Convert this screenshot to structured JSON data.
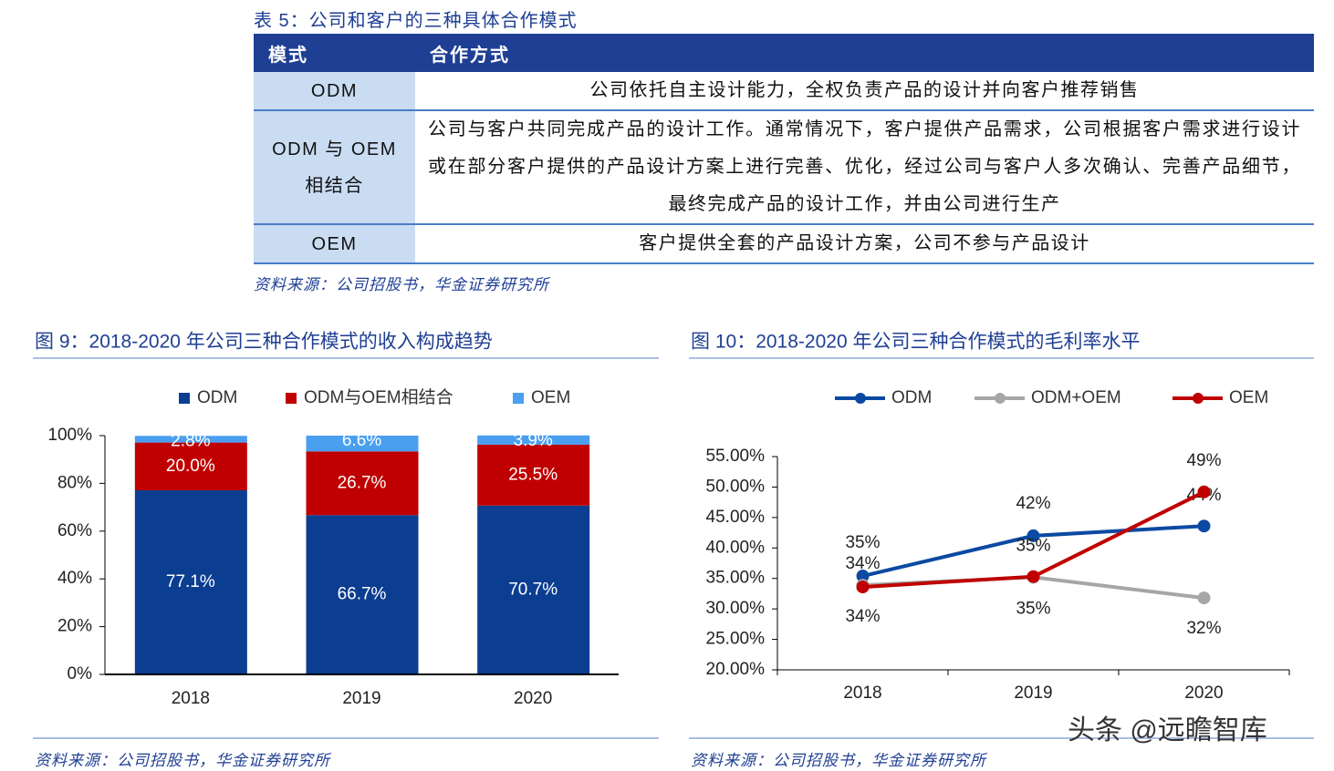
{
  "table": {
    "caption": "表 5：公司和客户的三种具体合作模式",
    "header": [
      "模式",
      "合作方式"
    ],
    "rows": [
      [
        "ODM",
        "公司依托自主设计能力，全权负责产品的设计并向客户推荐销售"
      ],
      [
        "ODM 与 OEM 相结合",
        "公司与客户共同完成产品的设计工作。通常情况下，客户提供产品需求，公司根据客户需求进行设计或在部分客户提供的产品设计方案上进行完善、优化，经过公司与客户人多次确认、完善产品细节，最终完成产品的设计工作，并由公司进行生产"
      ],
      [
        "OEM",
        "客户提供全套的产品设计方案，公司不参与产品设计"
      ]
    ],
    "source": "资料来源：公司招股书，华金证券研究所"
  },
  "chart_data": [
    {
      "type": "stacked-bar",
      "title": "图 9：2018-2020 年公司三种合作模式的收入构成趋势",
      "categories": [
        "2018",
        "2019",
        "2020"
      ],
      "series": [
        {
          "name": "ODM",
          "color": "#0b3d91",
          "values": [
            77.1,
            66.7,
            70.7
          ],
          "value_labels": [
            "77.1%",
            "66.7%",
            "70.7%"
          ]
        },
        {
          "name": "ODM与OEM相结合",
          "color": "#c00000",
          "values": [
            20.0,
            26.7,
            25.5
          ],
          "value_labels": [
            "20.0%",
            "26.7%",
            "25.5%"
          ]
        },
        {
          "name": "OEM",
          "color": "#4a9ff0",
          "values": [
            2.8,
            6.6,
            3.9
          ],
          "value_labels": [
            "2.8%",
            "6.6%",
            "3.9%"
          ]
        }
      ],
      "ylim": [
        0,
        100
      ],
      "yticks": [
        {
          "value": 0,
          "label": "0%"
        },
        {
          "value": 20,
          "label": "20%"
        },
        {
          "value": 40,
          "label": "40%"
        },
        {
          "value": 60,
          "label": "60%"
        },
        {
          "value": 80,
          "label": "80%"
        },
        {
          "value": 100,
          "label": "100%"
        }
      ],
      "source": "资料来源：公司招股书，华金证券研究所"
    },
    {
      "type": "line",
      "title": "图 10：2018-2020 年公司三种合作模式的毛利率水平",
      "categories": [
        "2018",
        "2019",
        "2020"
      ],
      "series": [
        {
          "name": "ODM",
          "color": "#0b4aa2",
          "values": [
            35.4,
            42.0,
            43.6
          ],
          "value_labels": [
            "35%",
            "42%",
            "44%"
          ]
        },
        {
          "name": "ODM+OEM",
          "color": "#a6a6a6",
          "values": [
            33.9,
            35.2,
            31.8
          ],
          "value_labels": [
            "34%",
            "35%",
            "32%"
          ]
        },
        {
          "name": "OEM",
          "color": "#c00000",
          "values": [
            33.6,
            35.3,
            49.2
          ],
          "value_labels": [
            "34%",
            "35%",
            "49%"
          ]
        }
      ],
      "ylim": [
        20,
        55
      ],
      "yticks": [
        {
          "value": 20,
          "label": "20.00%"
        },
        {
          "value": 25,
          "label": "25.00%"
        },
        {
          "value": 30,
          "label": "30.00%"
        },
        {
          "value": 35,
          "label": "35.00%"
        },
        {
          "value": 40,
          "label": "40.00%"
        },
        {
          "value": 45,
          "label": "45.00%"
        },
        {
          "value": 50,
          "label": "50.00%"
        },
        {
          "value": 55,
          "label": "55.00%"
        }
      ],
      "source": "资料来源：公司招股书，华金证券研究所"
    }
  ],
  "watermark": "头条 @远瞻智库"
}
